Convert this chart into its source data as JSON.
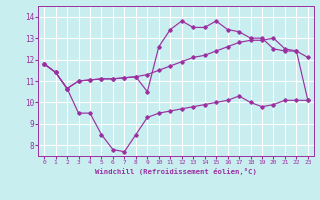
{
  "background_color": "#c8eef0",
  "grid_color": "#ffffff",
  "line_color": "#9b30a0",
  "xlabel": "Windchill (Refroidissement éolien,°C)",
  "xlim": [
    -0.5,
    23.5
  ],
  "ylim": [
    7.5,
    14.5
  ],
  "yticks": [
    8,
    9,
    10,
    11,
    12,
    13,
    14
  ],
  "xticks": [
    0,
    1,
    2,
    3,
    4,
    5,
    6,
    7,
    8,
    9,
    10,
    11,
    12,
    13,
    14,
    15,
    16,
    17,
    18,
    19,
    20,
    21,
    22,
    23
  ],
  "series_zigzag_x": [
    0,
    1,
    2,
    3,
    4,
    5,
    6,
    7,
    8,
    9,
    10,
    11,
    12,
    13,
    14,
    15,
    16,
    17,
    18,
    19,
    20,
    21,
    22,
    23
  ],
  "series_zigzag_y": [
    11.8,
    11.4,
    10.65,
    9.5,
    9.5,
    8.5,
    7.8,
    7.7,
    8.5,
    9.3,
    9.5,
    9.6,
    9.7,
    9.8,
    9.9,
    10.0,
    10.1,
    10.3,
    10.0,
    9.8,
    9.9,
    10.1,
    10.1,
    10.1
  ],
  "series_diag_x": [
    0,
    1,
    2,
    3,
    4,
    5,
    6,
    7,
    8,
    9,
    10,
    11,
    12,
    13,
    14,
    15,
    16,
    17,
    18,
    19,
    20,
    21,
    22,
    23
  ],
  "series_diag_y": [
    11.8,
    11.4,
    10.65,
    11.0,
    11.05,
    11.1,
    11.1,
    11.15,
    11.2,
    11.3,
    11.5,
    11.7,
    11.9,
    12.1,
    12.2,
    12.4,
    12.6,
    12.8,
    12.9,
    12.9,
    13.0,
    12.5,
    12.4,
    12.1
  ],
  "series_upper_x": [
    0,
    1,
    2,
    3,
    4,
    5,
    6,
    7,
    8,
    9,
    10,
    11,
    12,
    13,
    14,
    15,
    16,
    17,
    18,
    19,
    20,
    21,
    22,
    23
  ],
  "series_upper_y": [
    11.8,
    11.4,
    10.65,
    11.0,
    11.05,
    11.1,
    11.1,
    11.15,
    11.2,
    10.5,
    12.6,
    13.4,
    13.8,
    13.5,
    13.5,
    13.8,
    13.4,
    13.3,
    13.0,
    13.0,
    12.5,
    12.4,
    12.4,
    10.1
  ]
}
